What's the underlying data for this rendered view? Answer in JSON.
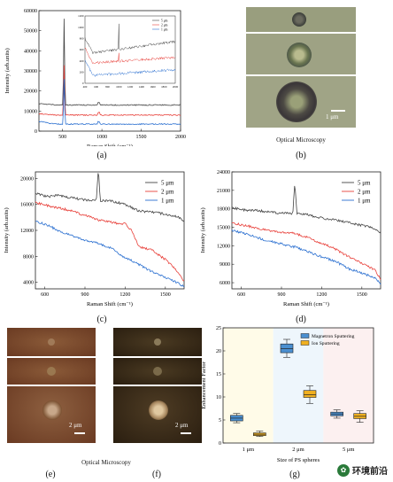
{
  "panels": {
    "a": {
      "label": "(a)"
    },
    "b": {
      "label": "(b)",
      "caption": "Optical Microscopy",
      "scale": "1 μm"
    },
    "c": {
      "label": "(c)"
    },
    "d": {
      "label": "(d)"
    },
    "e": {
      "label": "(e)",
      "scale": "2 μm"
    },
    "f": {
      "label": "(f)",
      "scale": "2 μm"
    },
    "ef_caption": "Optical Microscopy",
    "g": {
      "label": "(g)"
    }
  },
  "colors": {
    "black": "#444444",
    "red": "#e8403a",
    "blue": "#2a6fd0",
    "mag": "#4a8fd0",
    "ion": "#f0b020"
  },
  "chart_data": [
    {
      "id": "a",
      "type": "line",
      "xlabel": "Raman Shift (cm⁻¹)",
      "ylabel": "Intensity (arb.units)",
      "xlim": [
        200,
        2000
      ],
      "ylim": [
        0,
        60000
      ],
      "xticks": [
        500,
        1000,
        1500,
        2000
      ],
      "yticks": [
        0,
        10000,
        20000,
        30000,
        40000,
        50000,
        60000
      ],
      "series": [
        {
          "name": "5 μm",
          "color": "#444444",
          "base": 13000
        },
        {
          "name": "2 μm",
          "color": "#e8403a",
          "base": 8000
        },
        {
          "name": "1 μm",
          "color": "#2a6fd0",
          "base": 3500
        }
      ],
      "inset": {
        "xlim": [
          400,
          2000
        ],
        "ylim": [
          0,
          1200
        ],
        "xticks": [
          400,
          600,
          800,
          1000,
          1200,
          1400,
          1600,
          1800,
          2000
        ],
        "yticks": [
          0,
          200,
          400,
          600,
          800,
          1000,
          1200
        ]
      }
    },
    {
      "id": "c",
      "type": "line",
      "xlabel": "Raman Shift (cm⁻¹)",
      "ylabel": "Intensity (arb.units)",
      "xlim": [
        530,
        1640
      ],
      "ylim": [
        3000,
        21000
      ],
      "xticks": [
        600,
        900,
        1200,
        1500
      ],
      "yticks": [
        4000,
        8000,
        12000,
        16000,
        20000
      ],
      "series": [
        {
          "name": "5 μm",
          "color": "#444444",
          "x": [
            530,
            620,
            700,
            800,
            900,
            985,
            1000,
            1015,
            1100,
            1200,
            1300,
            1400,
            1500,
            1600,
            1640
          ],
          "y": [
            17700,
            17200,
            17400,
            17000,
            16700,
            16600,
            21500,
            16600,
            16500,
            16000,
            15000,
            14800,
            14500,
            14000,
            13500
          ]
        },
        {
          "name": "2 μm",
          "color": "#e8403a",
          "x": [
            530,
            620,
            700,
            800,
            900,
            1000,
            1100,
            1200,
            1250,
            1300,
            1400,
            1500,
            1600,
            1640
          ],
          "y": [
            16300,
            15800,
            15500,
            15000,
            14300,
            13600,
            13200,
            13000,
            12000,
            9500,
            9000,
            7500,
            5500,
            4200
          ]
        },
        {
          "name": "1 μm",
          "color": "#2a6fd0",
          "x": [
            530,
            620,
            700,
            800,
            900,
            1000,
            1100,
            1200,
            1300,
            1400,
            1500,
            1600,
            1640
          ],
          "y": [
            13400,
            12800,
            12000,
            11200,
            10500,
            10000,
            9200,
            7800,
            6800,
            5600,
            4800,
            3800,
            3300
          ]
        }
      ],
      "legend": "top-right"
    },
    {
      "id": "d",
      "type": "line",
      "xlabel": "Raman Shift (cm⁻¹)",
      "ylabel": "Intensity (arb.units)",
      "xlim": [
        530,
        1640
      ],
      "ylim": [
        5000,
        24000
      ],
      "xticks": [
        600,
        900,
        1200,
        1500
      ],
      "yticks": [
        6000,
        9000,
        12000,
        15000,
        18000,
        21000,
        24000
      ],
      "series": [
        {
          "name": "5 μm",
          "color": "#444444",
          "x": [
            530,
            620,
            700,
            800,
            900,
            985,
            1000,
            1015,
            1100,
            1200,
            1300,
            1400,
            1500,
            1600,
            1640
          ],
          "y": [
            18200,
            17800,
            17800,
            17500,
            17300,
            17200,
            22500,
            17200,
            17000,
            16500,
            16200,
            15800,
            15300,
            14800,
            14200
          ]
        },
        {
          "name": "2 μm",
          "color": "#e8403a",
          "x": [
            530,
            620,
            700,
            800,
            900,
            1000,
            1100,
            1200,
            1300,
            1400,
            1500,
            1600,
            1640
          ],
          "y": [
            15700,
            15300,
            15000,
            14500,
            14200,
            14000,
            13300,
            12400,
            11500,
            10200,
            9200,
            8000,
            6500
          ]
        },
        {
          "name": "1 μm",
          "color": "#2a6fd0",
          "x": [
            530,
            620,
            700,
            800,
            900,
            1000,
            1100,
            1200,
            1300,
            1400,
            1500,
            1600,
            1640
          ],
          "y": [
            14500,
            14000,
            13500,
            12800,
            12300,
            11800,
            11000,
            10200,
            9500,
            8300,
            7600,
            6700,
            5800
          ]
        }
      ],
      "legend": "top-right"
    },
    {
      "id": "g",
      "type": "box",
      "xlabel": "Size of PS spheres",
      "ylabel": "Enhancement Factor",
      "ylim": [
        0,
        25
      ],
      "yticks": [
        0,
        5,
        10,
        15,
        20,
        25
      ],
      "categories": [
        "1 μm",
        "2 μm",
        "5 μm"
      ],
      "series": [
        {
          "name": "Magnetron Sputtering",
          "color": "#4a8fd0",
          "boxes": [
            [
              4.4,
              4.8,
              5.4,
              6.0,
              6.4
            ],
            [
              18.6,
              19.6,
              20.5,
              21.5,
              22.5
            ],
            [
              5.4,
              5.9,
              6.3,
              6.7,
              7.2
            ]
          ]
        },
        {
          "name": "Ion Sputtering",
          "color": "#f0b020",
          "boxes": [
            [
              1.4,
              1.6,
              1.9,
              2.2,
              2.6
            ],
            [
              8.6,
              9.9,
              10.5,
              11.4,
              12.4
            ],
            [
              4.5,
              5.3,
              5.8,
              6.4,
              7.0
            ]
          ]
        }
      ],
      "legend": "top-right"
    }
  ],
  "watermark": "环境前沿"
}
